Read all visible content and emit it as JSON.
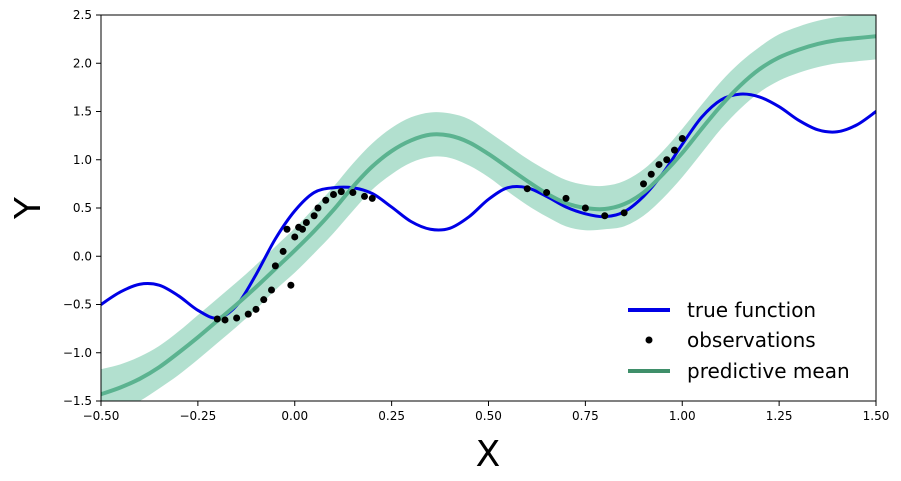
{
  "chart_data": {
    "type": "line",
    "xlabel": "X",
    "ylabel": "Y",
    "xlim": [
      -0.5,
      1.5
    ],
    "ylim": [
      -1.5,
      2.5
    ],
    "grid": false,
    "legend_placement": "bottom-right",
    "x_ticks": [
      "−0.50",
      "−0.25",
      "0.00",
      "0.25",
      "0.50",
      "0.75",
      "1.00",
      "1.25",
      "1.50"
    ],
    "x_tick_values": [
      -0.5,
      -0.25,
      0.0,
      0.25,
      0.5,
      0.75,
      1.0,
      1.25,
      1.5
    ],
    "y_ticks": [
      "−1.5",
      "−1.0",
      "−0.5",
      "0.0",
      "0.5",
      "1.0",
      "1.5",
      "2.0",
      "2.5"
    ],
    "y_tick_values": [
      -1.5,
      -1.0,
      -0.5,
      0.0,
      0.5,
      1.0,
      1.5,
      2.0,
      2.5
    ],
    "series": [
      {
        "name": "true function",
        "color": "#0000e6",
        "style": "line",
        "x": [
          -0.5,
          -0.45,
          -0.4,
          -0.35,
          -0.3,
          -0.25,
          -0.2,
          -0.15,
          -0.1,
          -0.05,
          0.0,
          0.05,
          0.1,
          0.15,
          0.2,
          0.25,
          0.3,
          0.35,
          0.4,
          0.45,
          0.5,
          0.55,
          0.6,
          0.65,
          0.7,
          0.75,
          0.8,
          0.85,
          0.9,
          0.95,
          1.0,
          1.05,
          1.1,
          1.15,
          1.2,
          1.25,
          1.3,
          1.35,
          1.4,
          1.45,
          1.5
        ],
        "y": [
          -0.5,
          -0.37,
          -0.29,
          -0.3,
          -0.41,
          -0.56,
          -0.64,
          -0.51,
          -0.19,
          0.18,
          0.47,
          0.66,
          0.71,
          0.71,
          0.65,
          0.51,
          0.36,
          0.28,
          0.29,
          0.41,
          0.59,
          0.71,
          0.71,
          0.62,
          0.51,
          0.44,
          0.41,
          0.46,
          0.62,
          0.86,
          1.16,
          1.44,
          1.62,
          1.68,
          1.65,
          1.55,
          1.41,
          1.31,
          1.29,
          1.36,
          1.5
        ]
      },
      {
        "name": "observations",
        "color": "#000000",
        "style": "markers",
        "x": [
          -0.2,
          -0.18,
          -0.15,
          -0.12,
          -0.1,
          -0.08,
          -0.06,
          -0.05,
          -0.03,
          -0.02,
          -0.01,
          0.0,
          0.01,
          0.02,
          0.03,
          0.05,
          0.06,
          0.08,
          0.1,
          0.12,
          0.15,
          0.18,
          0.2,
          0.6,
          0.65,
          0.7,
          0.75,
          0.8,
          0.85,
          0.9,
          0.92,
          0.94,
          0.96,
          0.98,
          1.0
        ],
        "y": [
          -0.65,
          -0.66,
          -0.64,
          -0.6,
          -0.55,
          -0.45,
          -0.35,
          -0.1,
          0.05,
          0.28,
          -0.3,
          0.2,
          0.3,
          0.28,
          0.35,
          0.42,
          0.5,
          0.58,
          0.64,
          0.67,
          0.66,
          0.62,
          0.6,
          0.7,
          0.66,
          0.6,
          0.5,
          0.42,
          0.45,
          0.75,
          0.85,
          0.95,
          1.0,
          1.1,
          1.22
        ]
      },
      {
        "name": "predictive mean",
        "color": "#3f8f6a",
        "style": "line",
        "x": [
          -0.5,
          -0.45,
          -0.4,
          -0.35,
          -0.3,
          -0.25,
          -0.2,
          -0.15,
          -0.1,
          -0.05,
          0.0,
          0.05,
          0.1,
          0.15,
          0.2,
          0.25,
          0.3,
          0.35,
          0.4,
          0.45,
          0.5,
          0.55,
          0.6,
          0.65,
          0.7,
          0.75,
          0.8,
          0.85,
          0.9,
          0.95,
          1.0,
          1.05,
          1.1,
          1.15,
          1.2,
          1.25,
          1.3,
          1.35,
          1.4,
          1.45,
          1.5
        ],
        "y": [
          -1.43,
          -1.36,
          -1.27,
          -1.15,
          -1.0,
          -0.84,
          -0.67,
          -0.5,
          -0.32,
          -0.13,
          0.06,
          0.26,
          0.48,
          0.72,
          0.93,
          1.09,
          1.2,
          1.26,
          1.25,
          1.18,
          1.06,
          0.92,
          0.78,
          0.65,
          0.55,
          0.5,
          0.49,
          0.54,
          0.66,
          0.85,
          1.07,
          1.32,
          1.56,
          1.77,
          1.94,
          2.06,
          2.14,
          2.2,
          2.24,
          2.26,
          2.28
        ]
      }
    ],
    "band": {
      "color": "#66c2a0",
      "lower": [
        -1.7,
        -1.6,
        -1.5,
        -1.37,
        -1.23,
        -1.07,
        -0.9,
        -0.73,
        -0.55,
        -0.35,
        -0.17,
        0.03,
        0.24,
        0.47,
        0.69,
        0.85,
        0.97,
        1.03,
        1.02,
        0.94,
        0.82,
        0.67,
        0.53,
        0.41,
        0.31,
        0.27,
        0.28,
        0.31,
        0.42,
        0.6,
        0.82,
        1.07,
        1.32,
        1.53,
        1.7,
        1.82,
        1.9,
        1.96,
        2.0,
        2.02,
        2.04
      ],
      "upper": [
        -1.17,
        -1.12,
        -1.04,
        -0.93,
        -0.78,
        -0.61,
        -0.44,
        -0.27,
        -0.09,
        0.1,
        0.29,
        0.5,
        0.72,
        0.96,
        1.17,
        1.33,
        1.44,
        1.49,
        1.48,
        1.42,
        1.29,
        1.15,
        1.01,
        0.89,
        0.79,
        0.74,
        0.73,
        0.78,
        0.9,
        1.09,
        1.32,
        1.57,
        1.81,
        2.01,
        2.17,
        2.3,
        2.38,
        2.44,
        2.48,
        2.5,
        2.52
      ]
    },
    "legend": [
      {
        "label": "true function",
        "kind": "line",
        "color": "#0000e6"
      },
      {
        "label": "observations",
        "kind": "marker",
        "color": "#000000"
      },
      {
        "label": "predictive mean",
        "kind": "line",
        "color": "#3f8f6a"
      }
    ]
  }
}
